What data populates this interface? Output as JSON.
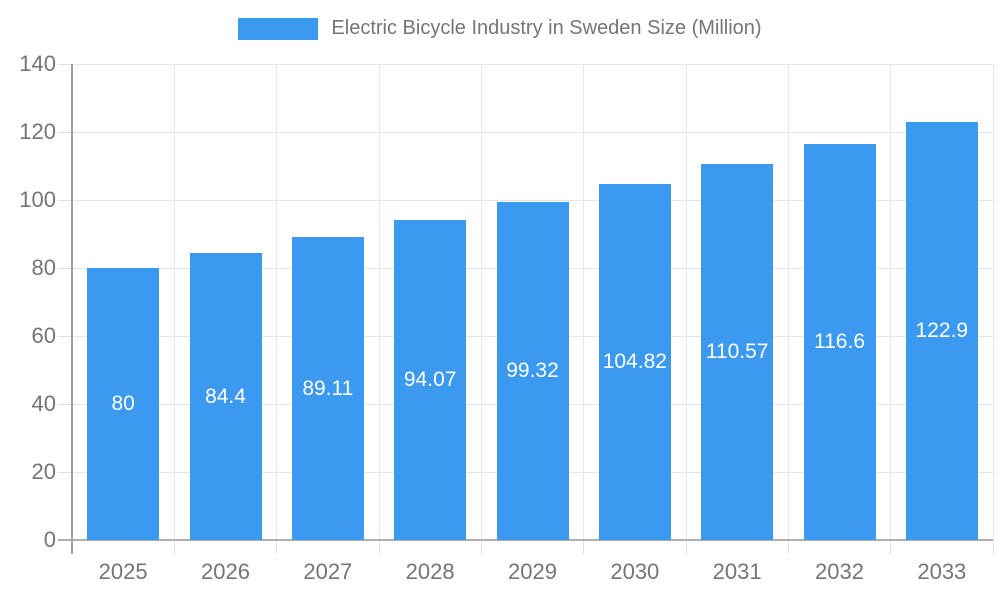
{
  "chart_data": {
    "type": "bar",
    "title": "Electric Bicycle Industry in Sweden Size (Million)",
    "categories": [
      "2025",
      "2026",
      "2027",
      "2028",
      "2029",
      "2030",
      "2031",
      "2032",
      "2033"
    ],
    "values": [
      80,
      84.4,
      89.11,
      94.07,
      99.32,
      104.82,
      110.57,
      116.6,
      122.9
    ],
    "value_labels": [
      "80",
      "84.4",
      "89.11",
      "94.07",
      "99.32",
      "104.82",
      "110.57",
      "116.6",
      "122.9"
    ],
    "xlabel": "",
    "ylabel": "",
    "ylim": [
      0,
      140
    ],
    "ytick_interval": 20,
    "ytick_labels": [
      "0",
      "20",
      "40",
      "60",
      "80",
      "100",
      "120",
      "140"
    ],
    "grid": "on",
    "legend_position": "top",
    "colors": {
      "bar": "#3b99f0",
      "value_label": "#ffffff",
      "axis_text": "#757575",
      "gridline": "#e6e6e6",
      "vertical_gridline": "#e9e9e9",
      "tick": "#e0e0e0",
      "baseline": "#b0b0b0",
      "axis_line": "#9e9e9e",
      "background": "#ffffff"
    }
  }
}
